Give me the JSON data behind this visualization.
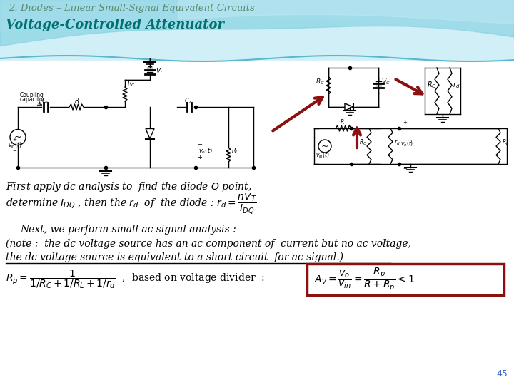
{
  "title": "2. Diodes – Linear Small-Signal Equivalent Circuits",
  "subtitle": "Voltage-Controlled Attenuator",
  "page_number": "45",
  "bg_color": "#ffffff",
  "title_color": "#5a8a70",
  "subtitle_color": "#007070",
  "text_color": "#000000",
  "dark_red": "#8b1010",
  "formula_box_color": "#8b1010",
  "figsize": [
    7.2,
    5.4
  ],
  "dpi": 100
}
